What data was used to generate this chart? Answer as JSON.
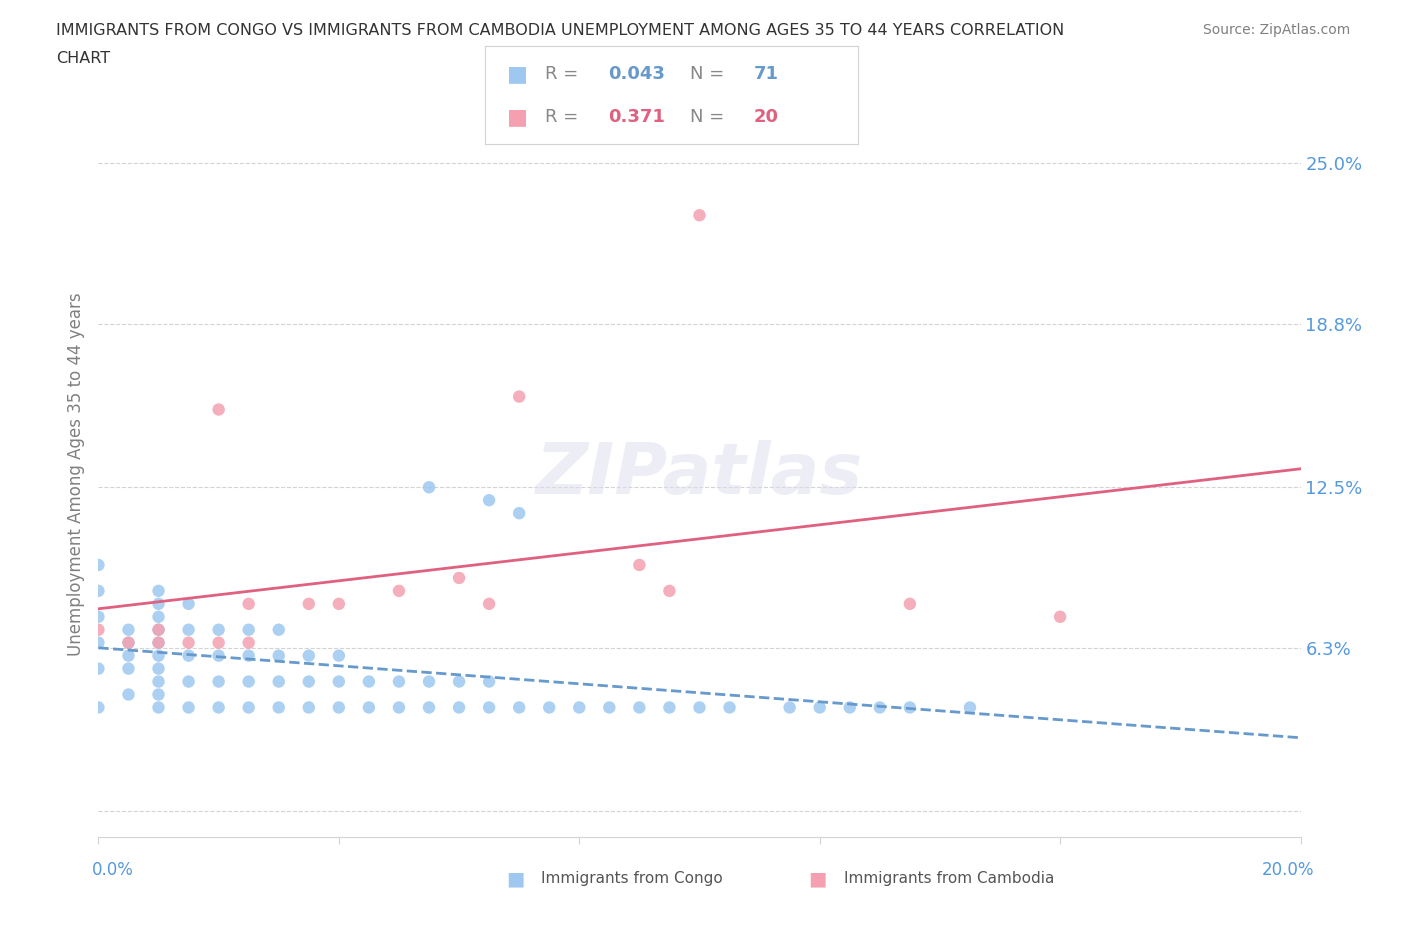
{
  "title": "IMMIGRANTS FROM CONGO VS IMMIGRANTS FROM CAMBODIA UNEMPLOYMENT AMONG AGES 35 TO 44 YEARS CORRELATION\nCHART",
  "source": "Source: ZipAtlas.com",
  "xlim": [
    0.0,
    0.2
  ],
  "ylim": [
    -0.01,
    0.27
  ],
  "congo_R": 0.043,
  "congo_N": 71,
  "cambodia_R": 0.371,
  "cambodia_N": 20,
  "congo_color": "#9EC8F0",
  "cambodia_color": "#F4A0B0",
  "congo_trend_color": "#6699CC",
  "cambodia_trend_color": "#E06080",
  "legend_label_congo": "Immigrants from Congo",
  "legend_label_cambodia": "Immigrants from Cambodia",
  "congo_scatter_x": [
    0.0,
    0.0,
    0.0,
    0.0,
    0.0,
    0.0,
    0.005,
    0.005,
    0.005,
    0.005,
    0.005,
    0.01,
    0.01,
    0.01,
    0.01,
    0.01,
    0.01,
    0.01,
    0.01,
    0.01,
    0.01,
    0.015,
    0.015,
    0.015,
    0.015,
    0.015,
    0.02,
    0.02,
    0.02,
    0.02,
    0.025,
    0.025,
    0.025,
    0.025,
    0.03,
    0.03,
    0.03,
    0.03,
    0.035,
    0.035,
    0.035,
    0.04,
    0.04,
    0.04,
    0.045,
    0.045,
    0.05,
    0.05,
    0.055,
    0.055,
    0.06,
    0.06,
    0.065,
    0.065,
    0.07,
    0.075,
    0.08,
    0.085,
    0.09,
    0.095,
    0.1,
    0.105,
    0.115,
    0.12,
    0.125,
    0.13,
    0.135,
    0.145,
    0.055,
    0.065,
    0.07
  ],
  "congo_scatter_y": [
    0.04,
    0.055,
    0.065,
    0.075,
    0.085,
    0.095,
    0.045,
    0.055,
    0.06,
    0.065,
    0.07,
    0.04,
    0.045,
    0.05,
    0.055,
    0.06,
    0.065,
    0.07,
    0.075,
    0.08,
    0.085,
    0.04,
    0.05,
    0.06,
    0.07,
    0.08,
    0.04,
    0.05,
    0.06,
    0.07,
    0.04,
    0.05,
    0.06,
    0.07,
    0.04,
    0.05,
    0.06,
    0.07,
    0.04,
    0.05,
    0.06,
    0.04,
    0.05,
    0.06,
    0.04,
    0.05,
    0.04,
    0.05,
    0.04,
    0.05,
    0.04,
    0.05,
    0.04,
    0.05,
    0.04,
    0.04,
    0.04,
    0.04,
    0.04,
    0.04,
    0.04,
    0.04,
    0.04,
    0.04,
    0.04,
    0.04,
    0.04,
    0.04,
    0.125,
    0.12,
    0.115
  ],
  "cambodia_scatter_x": [
    0.0,
    0.005,
    0.01,
    0.01,
    0.015,
    0.02,
    0.02,
    0.025,
    0.025,
    0.035,
    0.04,
    0.05,
    0.06,
    0.065,
    0.07,
    0.09,
    0.095,
    0.1,
    0.16,
    0.135
  ],
  "cambodia_scatter_y": [
    0.07,
    0.065,
    0.065,
    0.07,
    0.065,
    0.065,
    0.155,
    0.065,
    0.08,
    0.08,
    0.08,
    0.085,
    0.09,
    0.08,
    0.16,
    0.095,
    0.085,
    0.23,
    0.075,
    0.08
  ]
}
